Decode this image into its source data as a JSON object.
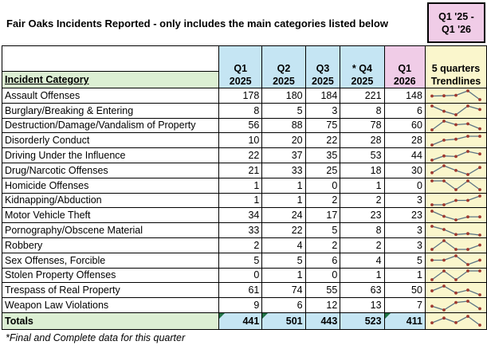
{
  "title": "Fair Oaks Incidents Reported - only includes the main categories listed below",
  "range_box": {
    "line1": "Q1 '25 -",
    "line2": "Q1 '26"
  },
  "table": {
    "category_header": "Incident Category",
    "quarter_headers": [
      {
        "line1": "Q1",
        "line2": "2025"
      },
      {
        "line1": "Q2",
        "line2": "2025"
      },
      {
        "line1": "Q3",
        "line2": "2025"
      },
      {
        "line1": "* Q4",
        "line2": "2025"
      },
      {
        "line1": "Q1",
        "line2": "2026"
      }
    ],
    "trendline_header": {
      "line1": "5 quarters",
      "line2": "Trendlines"
    },
    "rows": [
      {
        "category": "Assault Offenses",
        "values": [
          178,
          180,
          184,
          221,
          148
        ]
      },
      {
        "category": "Burglary/Breaking & Entering",
        "values": [
          8,
          5,
          3,
          8,
          6
        ]
      },
      {
        "category": "Destruction/Damage/Vandalism of Property",
        "values": [
          56,
          88,
          75,
          78,
          60
        ]
      },
      {
        "category": "Disorderly Conduct",
        "values": [
          10,
          20,
          22,
          28,
          28
        ]
      },
      {
        "category": "Driving Under the Influence",
        "values": [
          22,
          37,
          35,
          53,
          44
        ]
      },
      {
        "category": "Drug/Narcotic Offenses",
        "values": [
          21,
          33,
          25,
          18,
          30
        ]
      },
      {
        "category": "Homicide Offenses",
        "values": [
          1,
          1,
          0,
          1,
          0
        ]
      },
      {
        "category": "Kidnapping/Abduction",
        "values": [
          1,
          1,
          2,
          2,
          3
        ]
      },
      {
        "category": "Motor Vehicle Theft",
        "values": [
          34,
          24,
          17,
          23,
          23
        ]
      },
      {
        "category": "Pornography/Obscene Material",
        "values": [
          33,
          22,
          5,
          8,
          3
        ]
      },
      {
        "category": "Robbery",
        "values": [
          2,
          4,
          2,
          2,
          3
        ]
      },
      {
        "category": "Sex Offenses, Forcible",
        "values": [
          5,
          5,
          6,
          4,
          5
        ]
      },
      {
        "category": "Stolen Property Offenses",
        "values": [
          0,
          1,
          0,
          1,
          1
        ]
      },
      {
        "category": "Trespass of Real Property",
        "values": [
          61,
          74,
          55,
          63,
          50
        ]
      },
      {
        "category": "Weapon Law Violations",
        "values": [
          9,
          6,
          12,
          13,
          7
        ]
      }
    ],
    "totals": {
      "label": "Totals",
      "values": [
        441,
        501,
        443,
        523,
        411
      ],
      "comment_flags": [
        true,
        true,
        false,
        false,
        true
      ]
    }
  },
  "footnote": "*Final and Complete data for this quarter",
  "colors": {
    "header_blue": "#C5E5F3",
    "header_pink": "#F0CCE7",
    "header_green": "#DCEFD3",
    "trendline_yellow": "#FAF6CC",
    "sparkline_line": "#5B7282",
    "sparkline_marker": "#9F382E",
    "comment_flag_green": "#1F7244"
  }
}
